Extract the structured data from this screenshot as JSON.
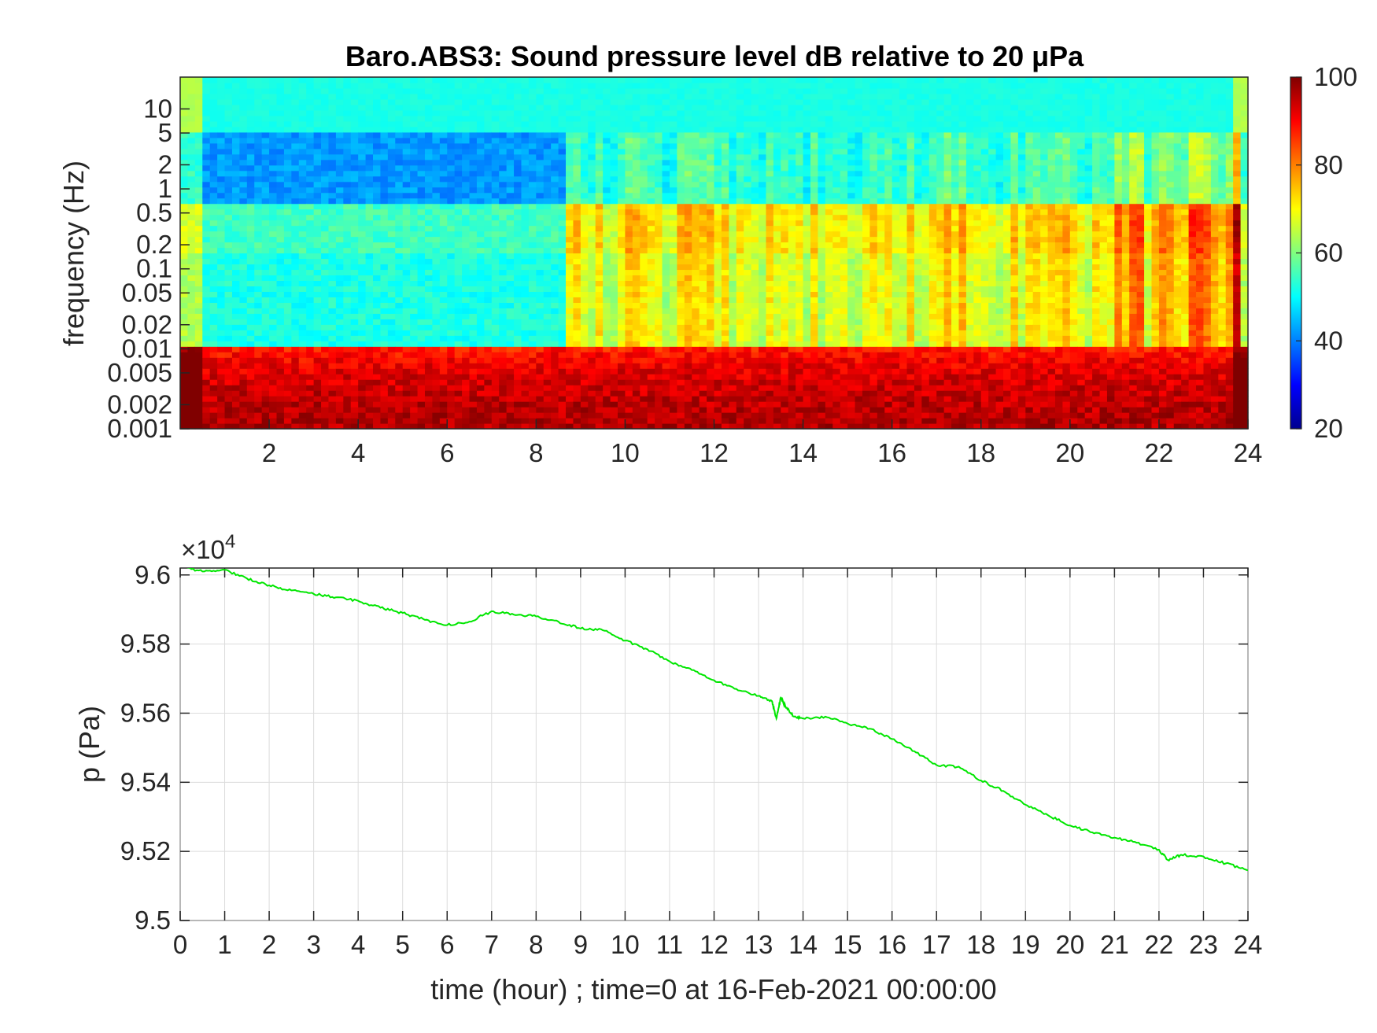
{
  "chart_data": [
    {
      "type": "heatmap",
      "title": "Baro.ABS3: Sound pressure level dB relative to 20 μPa",
      "xlabel": "",
      "ylabel": "frequency (Hz)",
      "xlim": [
        0,
        24
      ],
      "x_ticks": [
        "2",
        "4",
        "6",
        "8",
        "10",
        "12",
        "14",
        "16",
        "18",
        "20",
        "22",
        "24"
      ],
      "y_scale": "log",
      "ylim": [
        0.001,
        25
      ],
      "y_ticks": [
        "0.001",
        "0.002",
        "0.005",
        "0.01",
        "0.02",
        "0.05",
        "0.1",
        "0.2",
        "0.5",
        "1",
        "2",
        "5",
        "10"
      ],
      "colorbar": {
        "colormap": "jet",
        "clim": [
          20,
          100
        ],
        "ticks": [
          "20",
          "40",
          "60",
          "80",
          "100"
        ]
      },
      "bands": [
        {
          "freq_range": [
            5,
            25
          ],
          "level_db": 52
        },
        {
          "freq_range": [
            0.7,
            5
          ],
          "level_db": 42
        },
        {
          "freq_range": [
            0.15,
            0.7
          ],
          "level_db": 55
        },
        {
          "freq_range": [
            0.01,
            0.15
          ],
          "level_db": 52
        },
        {
          "freq_range": [
            0.001,
            0.01
          ],
          "level_db": 88
        }
      ],
      "activity_periods_hour": [
        [
          8.7,
          21.0
        ],
        [
          21.0,
          23.9
        ]
      ]
    },
    {
      "type": "line",
      "title": "",
      "xlabel": "time (hour) ; time=0 at 16-Feb-2021 00:00:00",
      "ylabel": "p (Pa)",
      "y_multiplier": "×10^4",
      "exponent_label": {
        "base": "×10",
        "exp": "4"
      },
      "xlim": [
        0,
        24
      ],
      "ylim": [
        9.5,
        9.602
      ],
      "x_ticks": [
        "0",
        "1",
        "2",
        "3",
        "4",
        "5",
        "6",
        "7",
        "8",
        "9",
        "10",
        "11",
        "12",
        "13",
        "14",
        "15",
        "16",
        "17",
        "18",
        "19",
        "20",
        "21",
        "22",
        "23",
        "24"
      ],
      "y_ticks": [
        "9.5",
        "9.52",
        "9.54",
        "9.56",
        "9.58",
        "9.6"
      ],
      "grid": true,
      "series": [
        {
          "color": "#00e600",
          "x": [
            0,
            0.5,
            1,
            1.5,
            2,
            2.5,
            3,
            3.5,
            4,
            4.5,
            5,
            5.5,
            6,
            6.5,
            7,
            7.5,
            8,
            8.5,
            9,
            9.5,
            10,
            10.5,
            11,
            11.5,
            12,
            12.5,
            13,
            13.3,
            13.4,
            13.5,
            13.6,
            13.8,
            14,
            14.5,
            15,
            15.5,
            16,
            16.5,
            17,
            17.5,
            18,
            18.5,
            19,
            19.5,
            20,
            20.5,
            21,
            21.5,
            22,
            22.2,
            22.5,
            23,
            23.5,
            24
          ],
          "y": [
            9.6025,
            9.601,
            9.6015,
            9.599,
            9.597,
            9.5955,
            9.5945,
            9.5935,
            9.5925,
            9.5905,
            9.589,
            9.587,
            9.5855,
            9.5865,
            9.5895,
            9.5885,
            9.588,
            9.5865,
            9.5845,
            9.584,
            9.581,
            9.5785,
            9.575,
            9.5725,
            9.5695,
            9.567,
            9.565,
            9.5635,
            9.5585,
            9.5645,
            9.562,
            9.559,
            9.5585,
            9.559,
            9.557,
            9.5555,
            9.5525,
            9.549,
            9.545,
            9.5445,
            9.5405,
            9.5375,
            9.5335,
            9.5305,
            9.5275,
            9.5255,
            9.524,
            9.5225,
            9.5205,
            9.5175,
            9.519,
            9.5185,
            9.5165,
            9.5145
          ]
        }
      ]
    }
  ]
}
